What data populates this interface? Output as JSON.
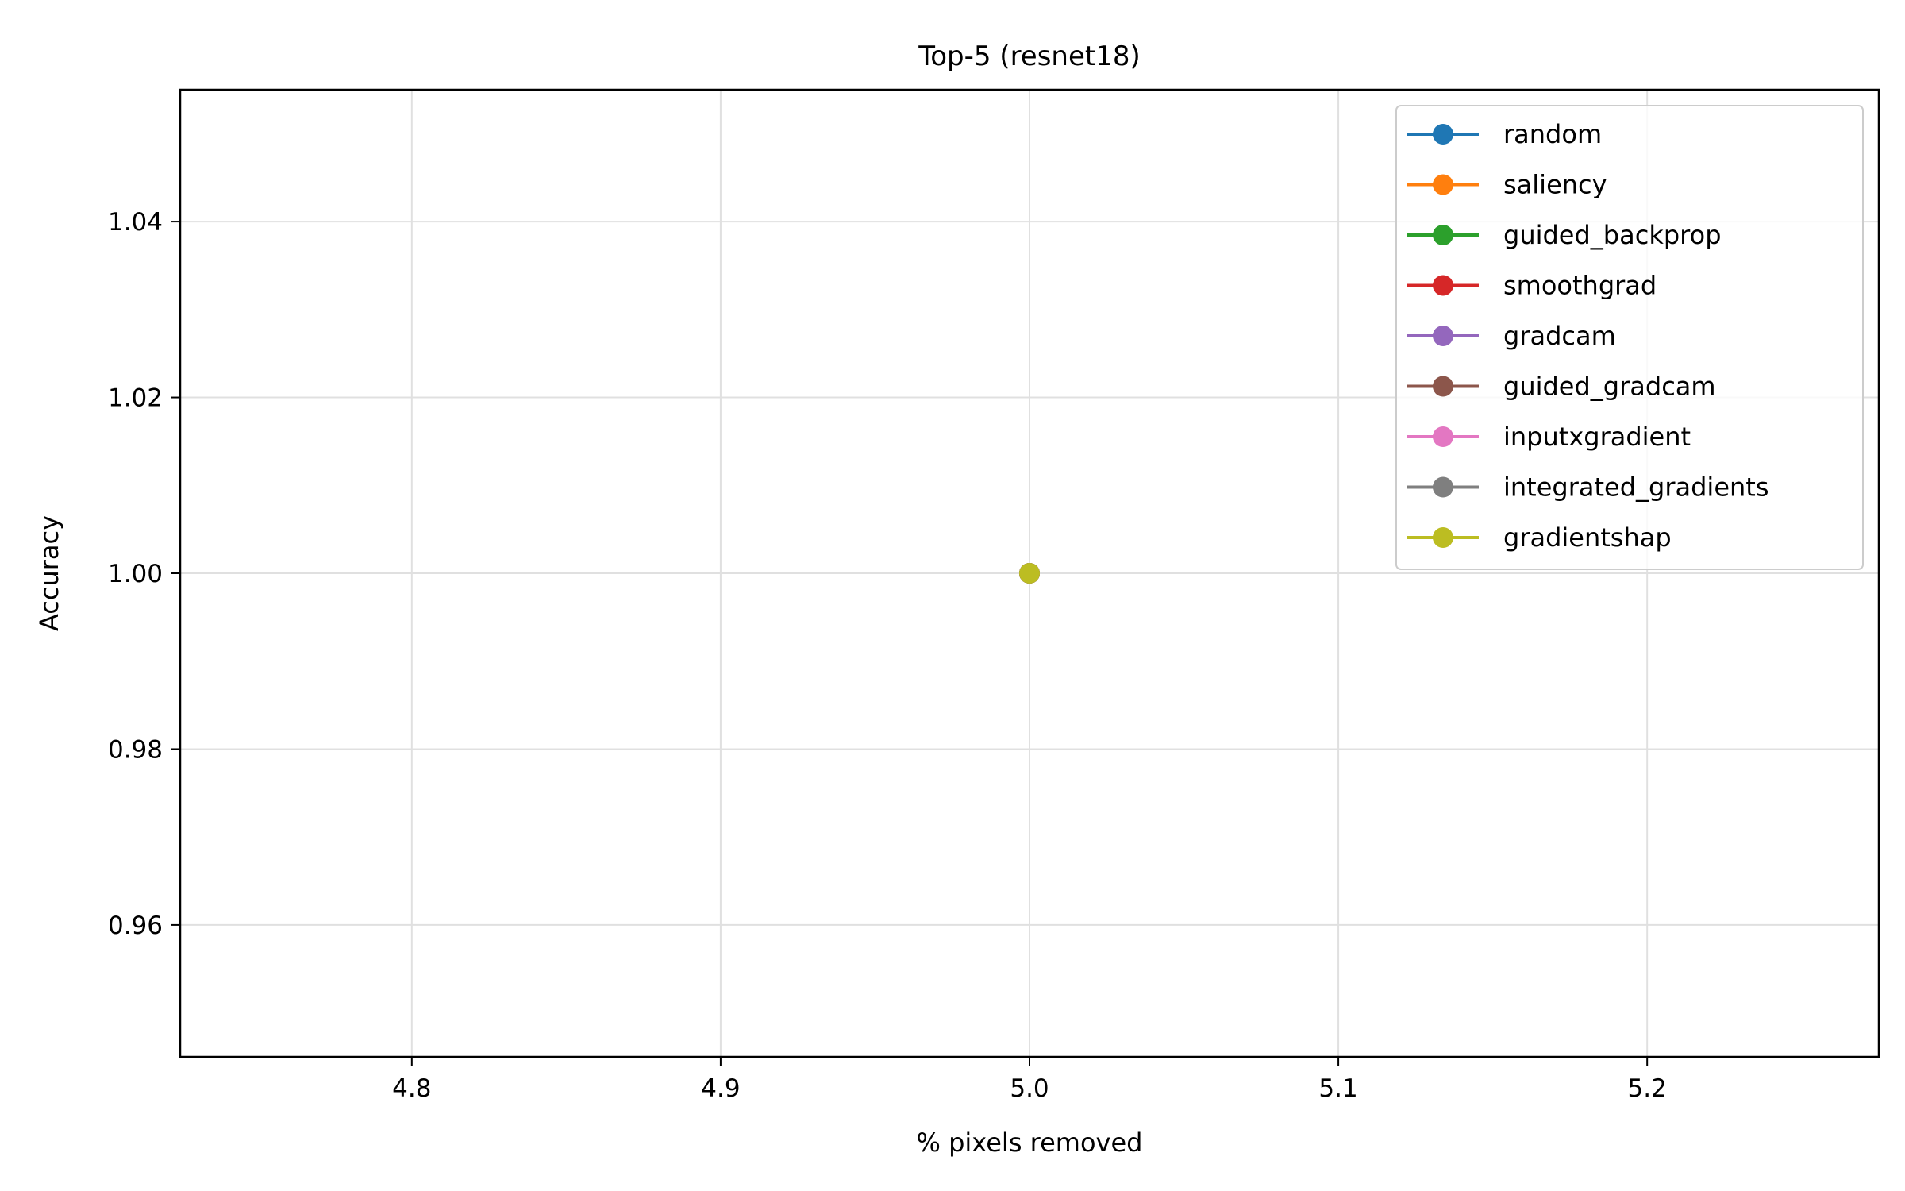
{
  "chart_data": {
    "type": "line",
    "title": "Top-5 (resnet18)",
    "xlabel": "% pixels removed",
    "ylabel": "Accuracy",
    "xlim": [
      4.725,
      5.275
    ],
    "ylim": [
      0.945,
      1.055
    ],
    "xticks": [
      4.8,
      4.9,
      5.0,
      5.1,
      5.2
    ],
    "xtick_labels": [
      "4.8",
      "4.9",
      "5.0",
      "5.1",
      "5.2"
    ],
    "yticks": [
      0.96,
      0.98,
      1.0,
      1.02,
      1.04
    ],
    "ytick_labels": [
      "0.96",
      "0.98",
      "1.00",
      "1.02",
      "1.04"
    ],
    "grid": true,
    "legend_position": "top-right",
    "series": [
      {
        "name": "random",
        "color": "#1f77b4",
        "x": [
          5.0
        ],
        "y": [
          1.0
        ]
      },
      {
        "name": "saliency",
        "color": "#ff7f0e",
        "x": [
          5.0
        ],
        "y": [
          1.0
        ]
      },
      {
        "name": "guided_backprop",
        "color": "#2ca02c",
        "x": [
          5.0
        ],
        "y": [
          1.0
        ]
      },
      {
        "name": "smoothgrad",
        "color": "#d62728",
        "x": [
          5.0
        ],
        "y": [
          1.0
        ]
      },
      {
        "name": "gradcam",
        "color": "#9467bd",
        "x": [
          5.0
        ],
        "y": [
          1.0
        ]
      },
      {
        "name": "guided_gradcam",
        "color": "#8c564b",
        "x": [
          5.0
        ],
        "y": [
          1.0
        ]
      },
      {
        "name": "inputxgradient",
        "color": "#e377c2",
        "x": [
          5.0
        ],
        "y": [
          1.0
        ]
      },
      {
        "name": "integrated_gradients",
        "color": "#7f7f7f",
        "x": [
          5.0
        ],
        "y": [
          1.0
        ]
      },
      {
        "name": "gradientshap",
        "color": "#bcbd22",
        "x": [
          5.0
        ],
        "y": [
          1.0
        ]
      }
    ]
  }
}
